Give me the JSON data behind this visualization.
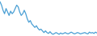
{
  "values": [
    58.0,
    54.0,
    48.0,
    44.0,
    50.0,
    46.0,
    42.0,
    47.0,
    44.0,
    46.0,
    50.0,
    54.0,
    52.0,
    46.0,
    42.0,
    44.0,
    48.0,
    44.0,
    38.0,
    34.0,
    36.0,
    32.0,
    30.0,
    28.0,
    30.0,
    27.0,
    25.0,
    26.0,
    24.0,
    22.0,
    24.0,
    22.0,
    21.0,
    23.0,
    21.0,
    20.0,
    21.0,
    22.0,
    21.0,
    20.0,
    21.5,
    20.5,
    21.0,
    22.0,
    21.0,
    20.5,
    21.5,
    22.5,
    21.5,
    20.5,
    21.0,
    22.0,
    21.5,
    20.5,
    21.0,
    21.5,
    22.0,
    21.0,
    20.5,
    22.5,
    21.5,
    22.0,
    21.0,
    22.5,
    21.5
  ],
  "line_color": "#4a9fd4",
  "linewidth": 0.9,
  "background_color": "#ffffff",
  "ylim_min": 18.0,
  "ylim_max": 60.0
}
